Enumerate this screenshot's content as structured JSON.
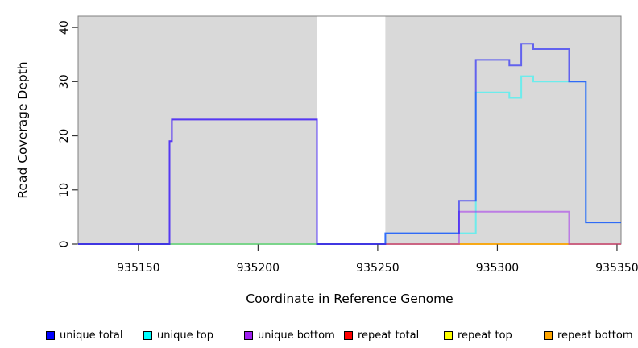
{
  "figure": {
    "background": "#ffffff",
    "plot_shade_color": "#d9d9d9",
    "box_color": "#808080"
  },
  "chart_data": {
    "type": "line",
    "subtype": "step-coverage",
    "title": "",
    "xlabel": "Coordinate in Reference Genome",
    "ylabel": "Read Coverage Depth",
    "x_ticks": [
      935150,
      935200,
      935250,
      935300,
      935350
    ],
    "y_ticks": [
      0,
      10,
      20,
      30,
      40
    ],
    "x_range": [
      935124.8,
      935351.7
    ],
    "y_range": [
      0,
      42.1
    ],
    "grid": false,
    "legend_position": "bottom",
    "shaded_regions": [
      {
        "from": 935124.8,
        "to": 935224.6
      },
      {
        "from": 935253.2,
        "to": 935351.7
      }
    ],
    "series": [
      {
        "name": "unique total",
        "color": "#0000ff",
        "opacity": 0.55,
        "steps": [
          [
            935124.8,
            0
          ],
          [
            935163,
            19
          ],
          [
            935164,
            23
          ],
          [
            935224.6,
            0
          ],
          [
            935253.2,
            2
          ],
          [
            935284,
            8
          ],
          [
            935291,
            34
          ],
          [
            935305,
            33
          ],
          [
            935310,
            37
          ],
          [
            935315,
            36
          ],
          [
            935330,
            30
          ],
          [
            935337,
            4
          ]
        ]
      },
      {
        "name": "unique top",
        "color": "#00ffff",
        "opacity": 0.5,
        "steps": [
          [
            935124.8,
            0
          ],
          [
            935253.2,
            2
          ],
          [
            935291,
            28
          ],
          [
            935305,
            27
          ],
          [
            935310,
            31
          ],
          [
            935315,
            30
          ],
          [
            935337,
            4
          ]
        ]
      },
      {
        "name": "unique bottom",
        "color": "#a020f0",
        "opacity": 0.5,
        "steps": [
          [
            935124.8,
            0
          ],
          [
            935163,
            19
          ],
          [
            935164,
            23
          ],
          [
            935224.6,
            0
          ],
          [
            935284,
            6
          ],
          [
            935330,
            0
          ]
        ]
      },
      {
        "name": "repeat total",
        "color": "#ff0000",
        "opacity": 0.5,
        "steps": [
          [
            935124.8,
            0
          ]
        ]
      },
      {
        "name": "repeat top",
        "color": "#ffff00",
        "opacity": 0.5,
        "steps": [
          [
            935124.8,
            0
          ]
        ]
      },
      {
        "name": "repeat bottom",
        "color": "#ffa500",
        "opacity": 0.5,
        "steps": [
          [
            935124.8,
            0
          ]
        ]
      }
    ],
    "draw_order": [
      "repeat total",
      "repeat top",
      "repeat bottom",
      "unique top",
      "unique bottom",
      "unique total"
    ]
  }
}
